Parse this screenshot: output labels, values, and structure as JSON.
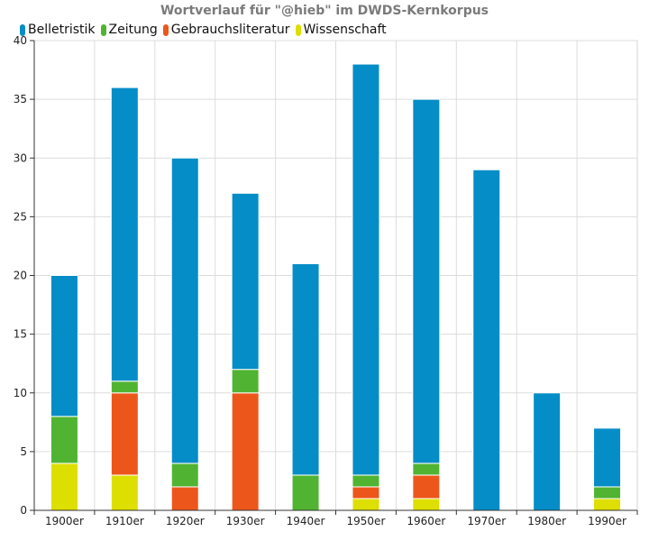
{
  "chart_data": {
    "type": "bar",
    "stacked": true,
    "title": "Wortverlauf für \"@hieb\" im DWDS-Kernkorpus",
    "xlabel": "",
    "ylabel": "",
    "ylim": [
      0,
      40
    ],
    "yticks": [
      0,
      5,
      10,
      15,
      20,
      25,
      30,
      35,
      40
    ],
    "grid": true,
    "legend_position": "top-left",
    "categories": [
      "1900er",
      "1910er",
      "1920er",
      "1930er",
      "1940er",
      "1950er",
      "1960er",
      "1970er",
      "1980er",
      "1990er"
    ],
    "series": [
      {
        "name": "Belletristik",
        "color": "#058DC7",
        "values": [
          12,
          25,
          26,
          15,
          18,
          35,
          31,
          29,
          10,
          5
        ]
      },
      {
        "name": "Zeitung",
        "color": "#50B432",
        "values": [
          4,
          1,
          2,
          2,
          3,
          1,
          1,
          0,
          0,
          1
        ]
      },
      {
        "name": "Gebrauchsliteratur",
        "color": "#ED561B",
        "values": [
          0,
          7,
          2,
          10,
          0,
          1,
          2,
          0,
          0,
          0
        ]
      },
      {
        "name": "Wissenschaft",
        "color": "#DDDF00",
        "values": [
          4,
          3,
          0,
          0,
          0,
          1,
          1,
          0,
          0,
          1
        ]
      }
    ]
  }
}
